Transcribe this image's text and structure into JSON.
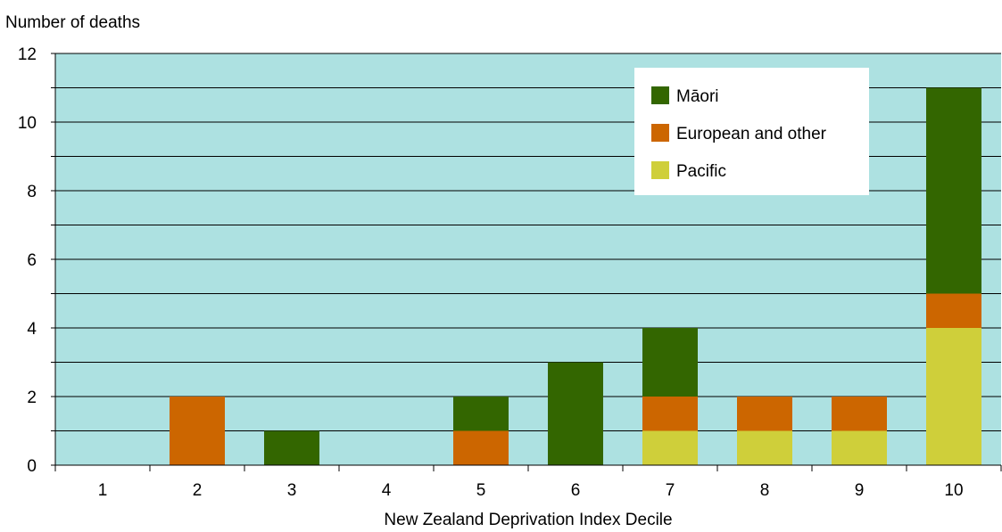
{
  "chart_data": {
    "type": "bar",
    "stacked": true,
    "title": "",
    "ylabel": "Number of deaths",
    "xlabel": "New Zealand Deprivation Index Decile",
    "categories": [
      "1",
      "2",
      "3",
      "4",
      "5",
      "6",
      "7",
      "8",
      "9",
      "10"
    ],
    "ylim": [
      0,
      12
    ],
    "yticks": [
      "0",
      "2",
      "4",
      "6",
      "8",
      "10",
      "12"
    ],
    "grid": true,
    "legend_position": "top-right",
    "series": [
      {
        "name": "Pacific",
        "color": "#cfcf3a",
        "values": [
          0,
          0,
          0,
          0,
          0,
          0,
          1,
          1,
          1,
          4
        ]
      },
      {
        "name": "European and other",
        "color": "#cc6600",
        "values": [
          0,
          2,
          0,
          0,
          1,
          0,
          1,
          1,
          1,
          1
        ]
      },
      {
        "name": "Māori",
        "color": "#336600",
        "values": [
          0,
          0,
          1,
          0,
          1,
          3,
          2,
          0,
          0,
          6
        ]
      }
    ],
    "legend_order": [
      "Māori",
      "European and other",
      "Pacific"
    ],
    "colors": {
      "plot_background": "#ade1e1",
      "gridline": "#000000"
    }
  }
}
